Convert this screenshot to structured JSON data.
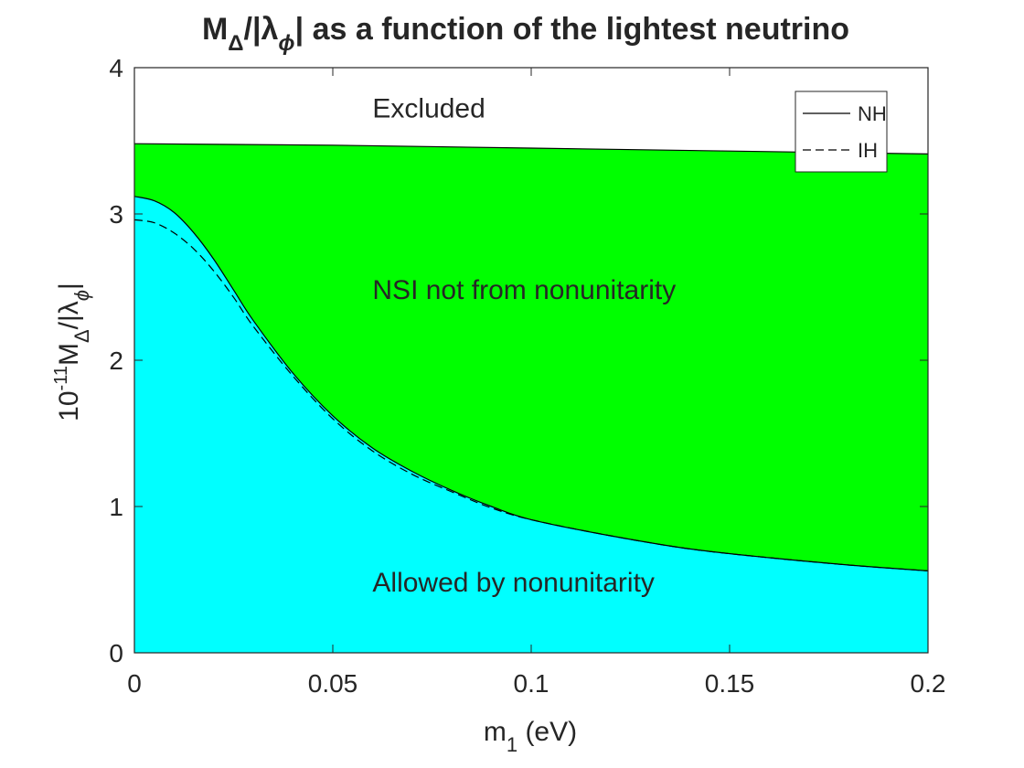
{
  "chart_data": {
    "type": "area",
    "title": {
      "main": "M",
      "main_sub": "Δ",
      "slash": "/|λ",
      "slash_sub": "ϕ",
      "rest": "| as a function of the lightest neutrino"
    },
    "xlabel": {
      "main": "m",
      "sub": "1",
      "rest": " (eV)"
    },
    "ylabel": {
      "pre": "10",
      "exp": "-11",
      "main": "M",
      "sub1": "Δ",
      "mid": "/|λ",
      "sub2": "ϕ",
      "end": "|"
    },
    "xlim": [
      0,
      0.2
    ],
    "ylim": [
      0,
      4
    ],
    "xticks": [
      "0",
      "0.05",
      "0.1",
      "0.15",
      "0.2"
    ],
    "yticks": [
      "0",
      "1",
      "2",
      "3",
      "4"
    ],
    "xtick_values": [
      0,
      0.05,
      0.1,
      0.15,
      0.2
    ],
    "ytick_values": [
      0,
      1,
      2,
      3,
      4
    ],
    "grid": false,
    "legend_position": "top-right",
    "series": [
      {
        "name": "NH",
        "style": "solid",
        "x": [
          0,
          0.005,
          0.01,
          0.015,
          0.02,
          0.025,
          0.03,
          0.04,
          0.05,
          0.06,
          0.07,
          0.08,
          0.09,
          0.1,
          0.12,
          0.14,
          0.16,
          0.18,
          0.2
        ],
        "values": [
          3.12,
          3.09,
          3.01,
          2.87,
          2.69,
          2.48,
          2.27,
          1.91,
          1.62,
          1.4,
          1.24,
          1.11,
          1.0,
          0.91,
          0.8,
          0.71,
          0.65,
          0.6,
          0.56
        ]
      },
      {
        "name": "IH",
        "style": "dashed",
        "x": [
          0,
          0.005,
          0.01,
          0.015,
          0.02,
          0.025,
          0.03,
          0.04,
          0.05,
          0.06,
          0.07,
          0.08,
          0.09,
          0.1,
          0.12,
          0.14,
          0.16,
          0.18,
          0.2
        ],
        "values": [
          2.96,
          2.94,
          2.87,
          2.76,
          2.61,
          2.43,
          2.23,
          1.89,
          1.6,
          1.38,
          1.22,
          1.1,
          0.99,
          0.91,
          0.8,
          0.71,
          0.65,
          0.6,
          0.56
        ]
      },
      {
        "name": "",
        "role": "upper-bound",
        "x": [
          0,
          0.05,
          0.1,
          0.15,
          0.2
        ],
        "values": [
          3.48,
          3.47,
          3.45,
          3.43,
          3.41
        ]
      }
    ],
    "regions": [
      {
        "label": "Excluded",
        "color": "#ffffff"
      },
      {
        "label": "NSI not from nonunitarity",
        "color": "#00ff00"
      },
      {
        "label": "Allowed by nonunitarity",
        "color": "#00ffff"
      }
    ],
    "colors": {
      "line": "#000000",
      "axis": "#262626"
    }
  }
}
